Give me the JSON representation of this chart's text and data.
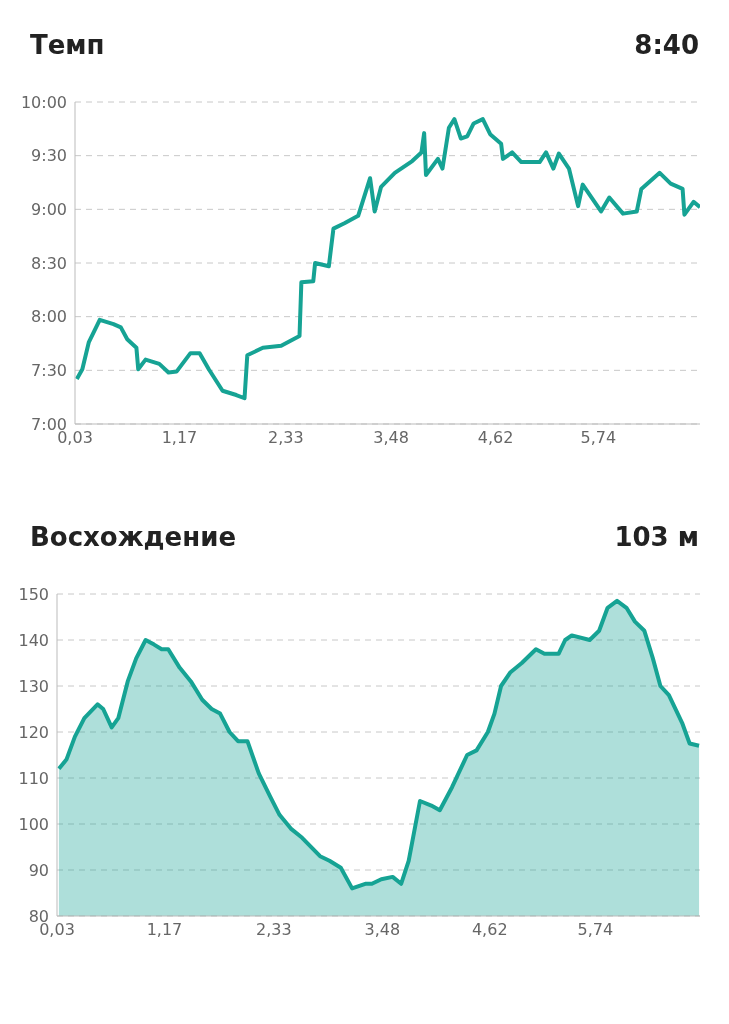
{
  "chart_data": [
    {
      "type": "line",
      "title": "Темп",
      "subtitle": "8:40",
      "color": "#16a394",
      "grid": "y",
      "line_style": "solid",
      "marker": "none",
      "x": [
        0.05,
        0.11,
        0.18,
        0.3,
        0.45,
        0.53,
        0.6,
        0.7,
        0.72,
        0.8,
        0.95,
        1.05,
        1.14,
        1.29,
        1.39,
        1.49,
        1.64,
        1.79,
        1.88,
        1.91,
        2.08,
        2.28,
        2.48,
        2.5,
        2.63,
        2.65,
        2.8,
        2.85,
        2.97,
        3.12,
        3.25,
        3.3,
        3.37,
        3.52,
        3.71,
        3.81,
        3.84,
        3.86,
        3.99,
        4.04,
        4.11,
        4.17,
        4.24,
        4.31,
        4.38,
        4.48,
        4.56,
        4.68,
        4.7,
        4.8,
        4.9,
        5.1,
        5.17,
        5.25,
        5.31,
        5.42,
        5.52,
        5.57,
        5.77,
        5.86,
        6.01,
        6.16,
        6.21,
        6.41,
        6.53,
        6.66,
        6.68,
        6.78,
        6.85
      ],
      "values": [
        7.42,
        7.51,
        7.76,
        7.97,
        7.93,
        7.9,
        7.79,
        7.71,
        7.51,
        7.6,
        7.56,
        7.48,
        7.49,
        7.66,
        7.66,
        7.51,
        7.31,
        7.27,
        7.24,
        7.64,
        7.71,
        7.73,
        7.82,
        8.32,
        8.33,
        8.5,
        8.47,
        8.82,
        8.87,
        8.94,
        9.29,
        8.98,
        9.21,
        9.34,
        9.45,
        9.53,
        9.71,
        9.32,
        9.47,
        9.38,
        9.76,
        9.84,
        9.66,
        9.68,
        9.8,
        9.84,
        9.7,
        9.61,
        9.47,
        9.53,
        9.44,
        9.44,
        9.53,
        9.38,
        9.52,
        9.38,
        9.03,
        9.23,
        8.98,
        9.11,
        8.96,
        8.98,
        9.19,
        9.34,
        9.24,
        9.19,
        8.95,
        9.07,
        9.02
      ],
      "xlim": [
        0.03,
        6.85
      ],
      "xticks": [
        {
          "value": 0.03,
          "label": "0,03"
        },
        {
          "value": 1.17,
          "label": "1,17"
        },
        {
          "value": 2.33,
          "label": "2,33"
        },
        {
          "value": 3.48,
          "label": "3,48"
        },
        {
          "value": 4.62,
          "label": "4,62"
        },
        {
          "value": 5.74,
          "label": "5,74"
        }
      ],
      "ylim": [
        7,
        10
      ],
      "yticks": [
        {
          "value": 7,
          "label": "7:00"
        },
        {
          "value": 7.5,
          "label": "7:30"
        },
        {
          "value": 8,
          "label": "8:00"
        },
        {
          "value": 8.5,
          "label": "8:30"
        },
        {
          "value": 9,
          "label": "9:00"
        },
        {
          "value": 9.5,
          "label": "9:30"
        },
        {
          "value": 10,
          "label": "10:00"
        }
      ]
    },
    {
      "type": "area",
      "title": "Восхождение",
      "subtitle": "103 м",
      "color": "#16a394",
      "grid": "y",
      "line_style": "solid",
      "marker": "none",
      "x": [
        0.05,
        0.13,
        0.22,
        0.32,
        0.46,
        0.52,
        0.61,
        0.68,
        0.78,
        0.87,
        0.97,
        1.06,
        1.14,
        1.21,
        1.33,
        1.45,
        1.57,
        1.67,
        1.76,
        1.86,
        1.95,
        2.05,
        2.17,
        2.29,
        2.39,
        2.51,
        2.63,
        2.82,
        2.92,
        3.04,
        3.16,
        3.3,
        3.37,
        3.47,
        3.59,
        3.68,
        3.76,
        3.88,
        4.0,
        4.09,
        4.22,
        4.38,
        4.48,
        4.6,
        4.67,
        4.74,
        4.84,
        4.96,
        5.11,
        5.2,
        5.35,
        5.42,
        5.49,
        5.68,
        5.78,
        5.87,
        5.97,
        6.07,
        6.16,
        6.26,
        6.35,
        6.43,
        6.52,
        6.66,
        6.74,
        6.84
      ],
      "values": [
        112,
        114,
        119,
        123,
        126,
        125,
        121,
        123,
        131,
        136,
        140,
        139,
        138,
        138,
        134,
        131,
        127,
        125,
        124,
        120,
        118,
        118,
        111,
        106,
        102,
        99,
        97,
        93,
        92,
        90.5,
        86,
        87,
        87,
        88,
        88.5,
        87,
        92,
        105,
        104,
        103,
        108,
        115,
        116,
        120,
        124,
        130,
        133,
        135,
        138,
        137,
        137,
        140,
        141,
        140,
        142,
        147,
        148.5,
        147,
        144,
        142,
        136,
        130,
        128,
        122,
        117.5,
        117
      ],
      "xlim": [
        0.03,
        6.85
      ],
      "xticks": [
        {
          "value": 0.03,
          "label": "0,03"
        },
        {
          "value": 1.17,
          "label": "1,17"
        },
        {
          "value": 2.33,
          "label": "2,33"
        },
        {
          "value": 3.48,
          "label": "3,48"
        },
        {
          "value": 4.62,
          "label": "4,62"
        },
        {
          "value": 5.74,
          "label": "5,74"
        }
      ],
      "ylim": [
        80,
        150
      ],
      "yticks": [
        80,
        90,
        100,
        110,
        120,
        130,
        140,
        150
      ]
    }
  ]
}
